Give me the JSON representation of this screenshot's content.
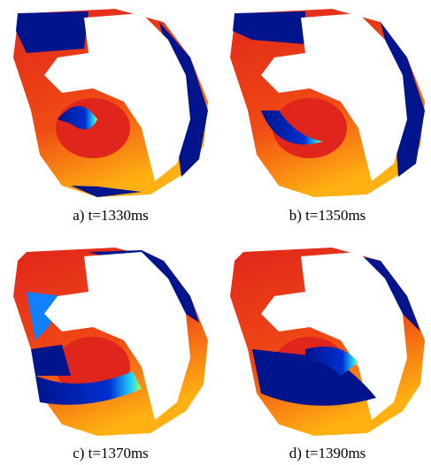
{
  "panels": [
    {
      "caption": "a) t=1330ms"
    },
    {
      "caption": "b) t=1350ms"
    },
    {
      "caption": "c) t=1370ms"
    },
    {
      "caption": "d) t=1390ms"
    }
  ]
}
